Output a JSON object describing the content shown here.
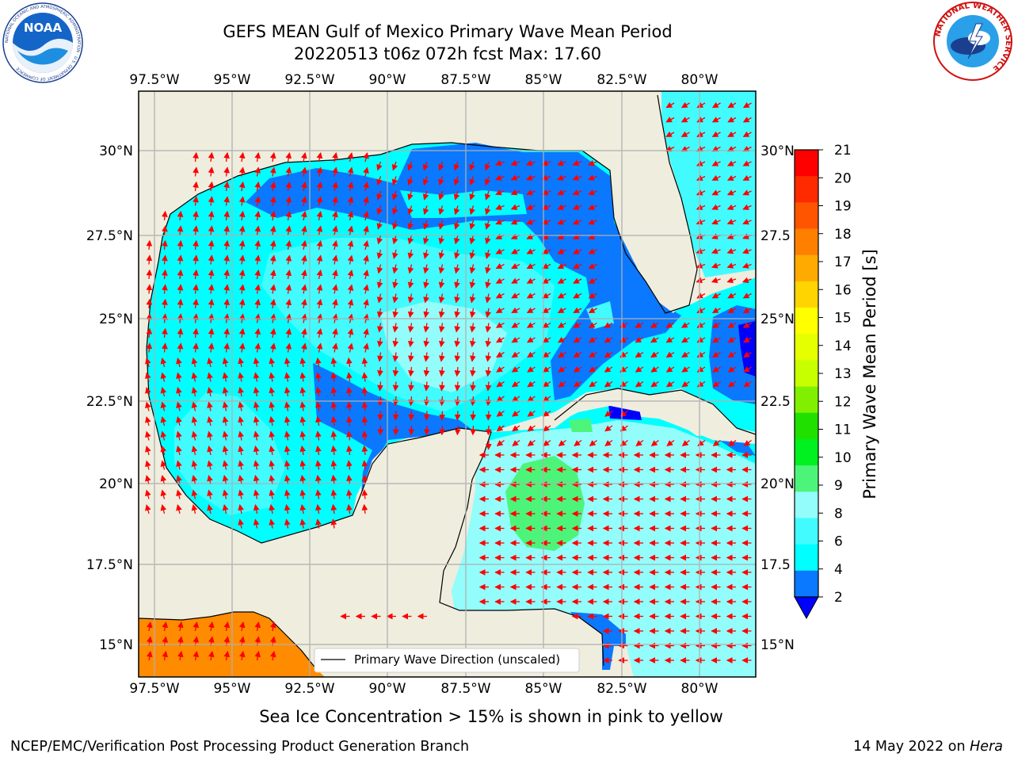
{
  "title": {
    "line1": "GEFS MEAN Gulf of Mexico Primary Wave Mean Period",
    "line2": "20220513 t06z 072h fcst   Max: 17.60"
  },
  "map": {
    "lon_labels": [
      "97.5°W",
      "95°W",
      "92.5°W",
      "90°W",
      "87.5°W",
      "85°W",
      "82.5°W",
      "80°W"
    ],
    "lat_labels_left": [
      "30°N",
      "27.5°N",
      "25°N",
      "22.5°N",
      "20°N",
      "17.5°N",
      "15°N"
    ],
    "lat_labels_right": [
      "30°N",
      "27.5",
      "25°N",
      "22.5",
      "20°N",
      "17.5",
      "15°N"
    ],
    "legend_label": "Primary Wave Direction (unscaled)",
    "colors": {
      "land": "#efedde",
      "c2": "#0000ff",
      "c2_4": "#0a78ff",
      "c4_6": "#00ffff",
      "c6_8": "#42fbff",
      "c8_9": "#93fdfc",
      "c9_10": "#4cf57a",
      "c17_18": "#ff8c00",
      "arrow": "#ff0000"
    }
  },
  "colorbar": {
    "label": "Primary Wave Mean Period [s]",
    "ticks": [
      "21",
      "20",
      "19",
      "18",
      "17",
      "16",
      "15",
      "14",
      "13",
      "12",
      "11",
      "10",
      "9",
      "8",
      "6",
      "4",
      "2"
    ],
    "colors": [
      "#ff0000",
      "#ff2a00",
      "#ff5500",
      "#ff8000",
      "#ffaa00",
      "#ffd400",
      "#ffff00",
      "#e6ff00",
      "#c8ff00",
      "#80f000",
      "#20e000",
      "#00f020",
      "#4cf57a",
      "#93fdfc",
      "#42fbff",
      "#00ffff",
      "#0a78ff"
    ],
    "extend_color": "#0000ff"
  },
  "subtitle": "Sea Ice Concentration > 15% is shown in pink to yellow",
  "footer": {
    "left": "NCEP/EMC/Verification Post Processing Product Generation Branch",
    "right_prefix": "14 May 2022 on ",
    "right_machine": "Hera"
  },
  "logos": {
    "noaa_text": "NOAA",
    "noaa_ring": "NATIONAL OCEANIC AND ATMOSPHERIC ADMINISTRATION · U.S. DEPARTMENT OF COMMERCE",
    "nws_ring": "NATIONAL WEATHER SERVICE"
  }
}
